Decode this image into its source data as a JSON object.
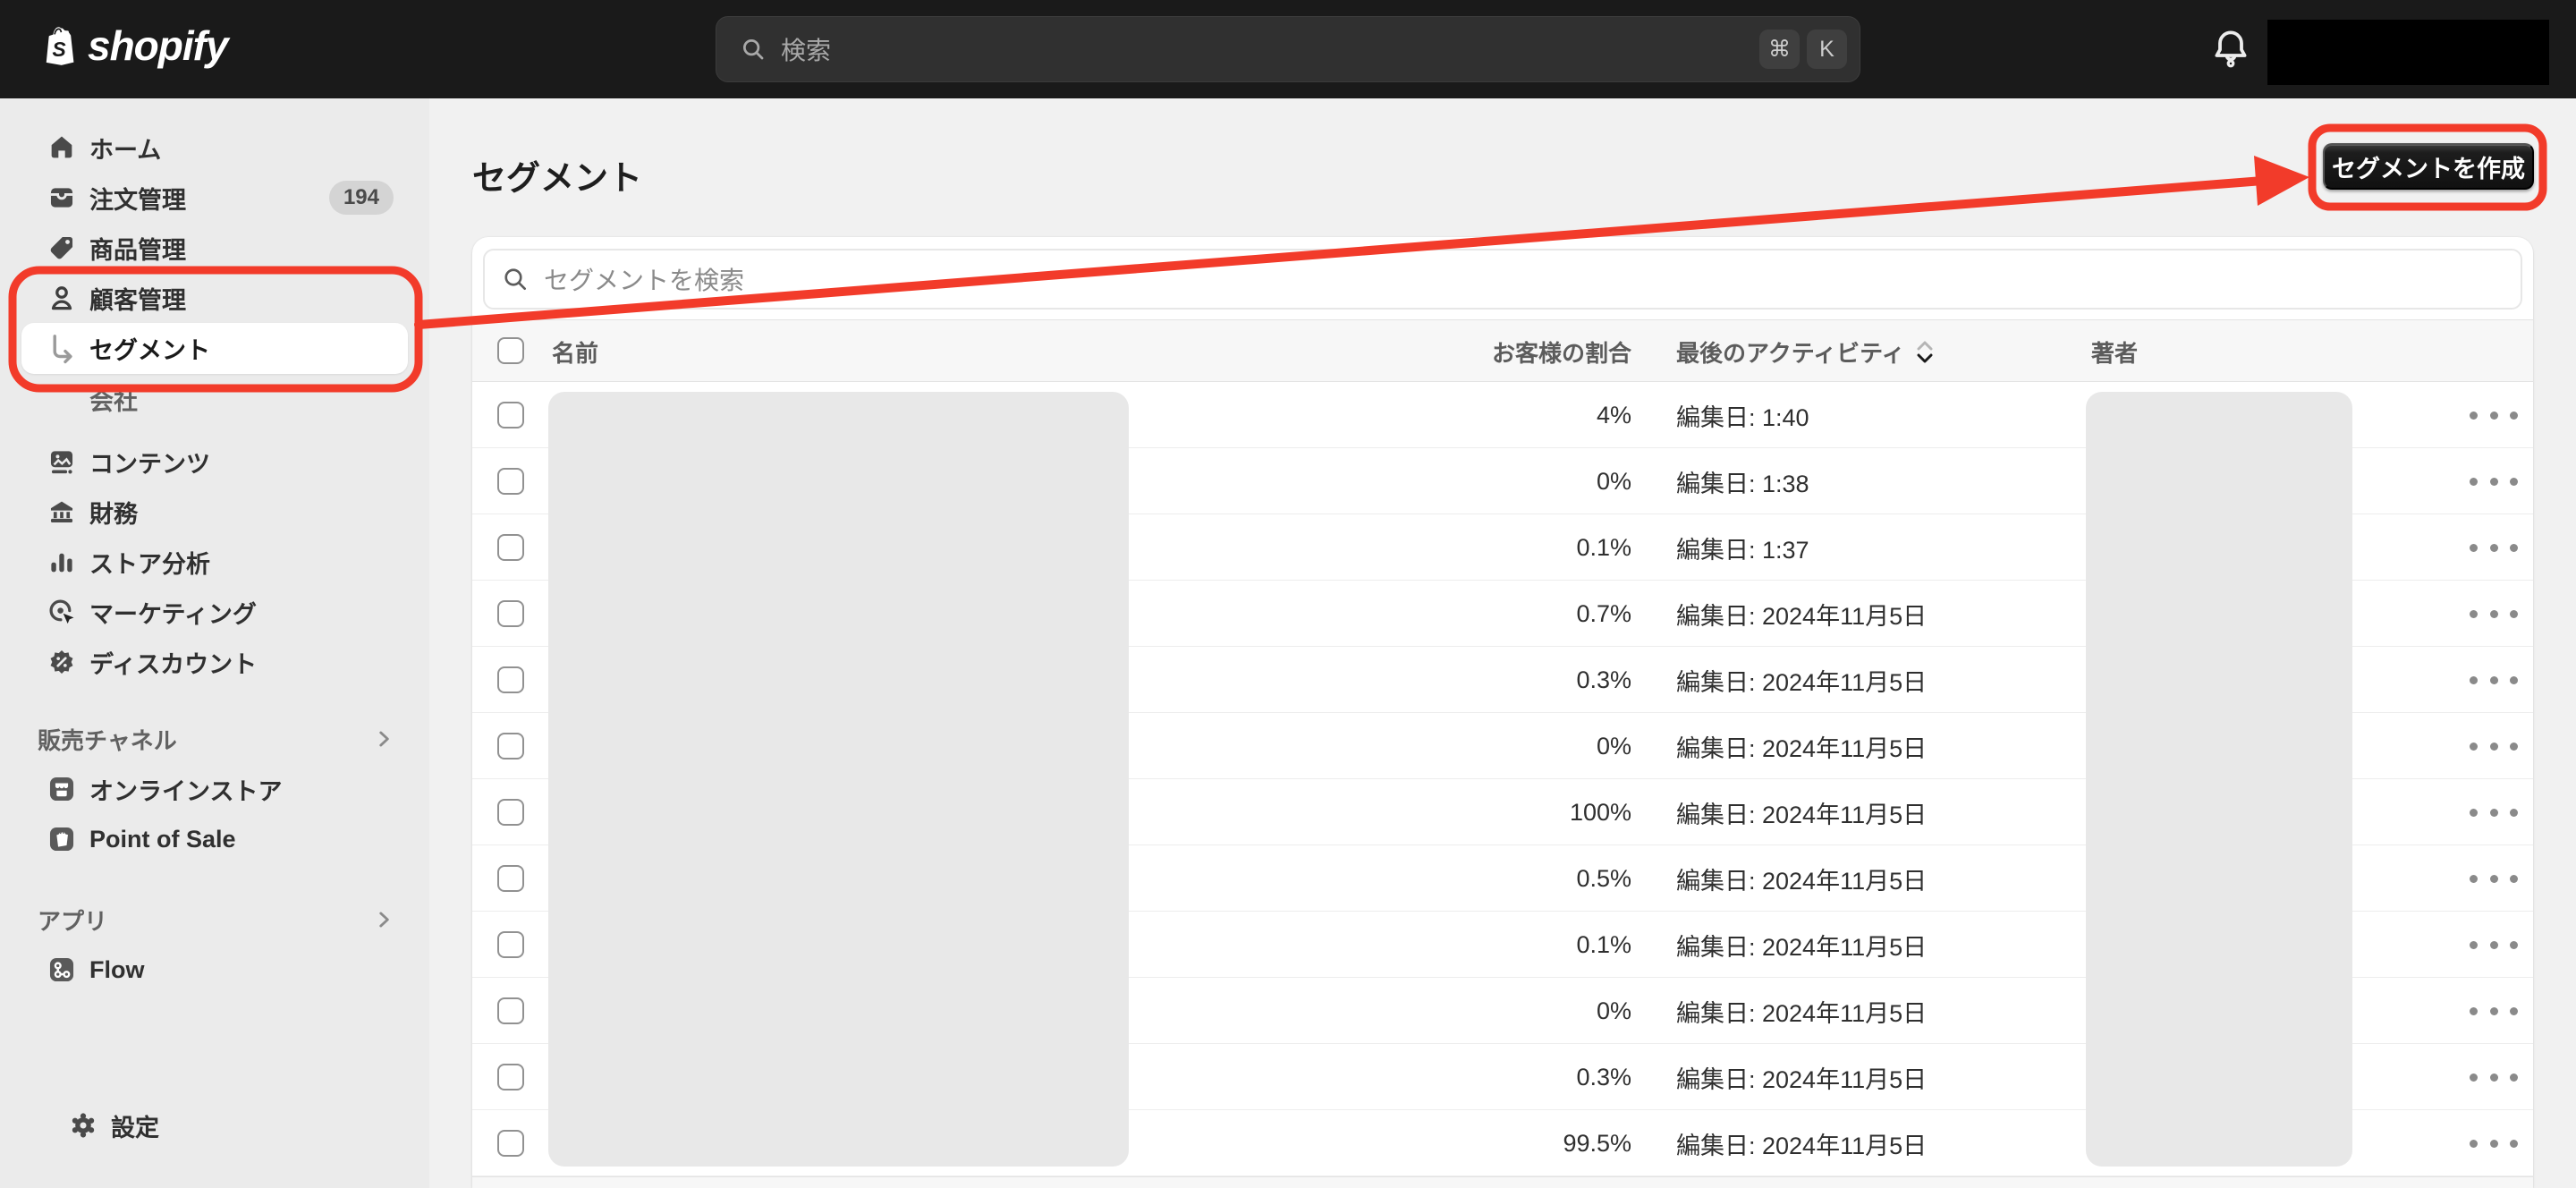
{
  "colors": {
    "annotation_red": "#f23b2a",
    "topbar_bg": "#1a1a1a",
    "sidebar_bg": "#ebebeb",
    "content_bg": "#f1f1f1",
    "button_dark": "#111111",
    "redaction_gray": "#e8e8e8",
    "redaction_black": "#000000"
  },
  "topbar": {
    "brand": "shopify",
    "search_placeholder": "検索",
    "shortcut_keys": [
      "⌘",
      "K"
    ]
  },
  "sidebar": {
    "main_items": [
      {
        "id": "home",
        "label": "ホーム",
        "icon": "home-icon"
      },
      {
        "id": "orders",
        "label": "注文管理",
        "icon": "orders-icon",
        "badge": "194"
      },
      {
        "id": "products",
        "label": "商品管理",
        "icon": "products-icon"
      },
      {
        "id": "customers",
        "label": "顧客管理",
        "icon": "customers-icon"
      },
      {
        "id": "segments",
        "label": "セグメント",
        "icon": "elbow-arrow-icon",
        "sub": true,
        "selected": true
      },
      {
        "id": "companies",
        "label": "会社",
        "sub": true
      },
      {
        "id": "content",
        "label": "コンテンツ",
        "icon": "content-icon",
        "gap": true
      },
      {
        "id": "finance",
        "label": "財務",
        "icon": "finance-icon"
      },
      {
        "id": "analytics",
        "label": "ストア分析",
        "icon": "analytics-icon"
      },
      {
        "id": "marketing",
        "label": "マーケティング",
        "icon": "marketing-icon"
      },
      {
        "id": "discounts",
        "label": "ディスカウント",
        "icon": "discounts-icon"
      }
    ],
    "sales_channels": {
      "header": "販売チャネル",
      "items": [
        {
          "id": "online-store",
          "label": "オンラインストア",
          "icon": "online-store-icon"
        },
        {
          "id": "point-of-sale",
          "label": "Point of Sale",
          "icon": "pos-icon"
        }
      ]
    },
    "apps": {
      "header": "アプリ",
      "items": [
        {
          "id": "flow",
          "label": "Flow",
          "icon": "flow-icon"
        }
      ]
    },
    "settings": {
      "label": "設定",
      "icon": "gear-icon"
    }
  },
  "page": {
    "title": "セグメント",
    "create_button_label": "セグメントを作成",
    "search_placeholder": "セグメントを検索"
  },
  "table": {
    "headers": {
      "name": "名前",
      "percent": "お客様の割合",
      "activity": "最後のアクティビティ",
      "author": "著者"
    },
    "sort_column": "最後のアクティビティ",
    "sort_direction": "descending",
    "rows": [
      {
        "percent": "4%",
        "activity": "編集日: 1:40"
      },
      {
        "percent": "0%",
        "activity": "編集日: 1:38"
      },
      {
        "percent": "0.1%",
        "activity": "編集日: 1:37"
      },
      {
        "percent": "0.7%",
        "activity": "編集日: 2024年11月5日"
      },
      {
        "percent": "0.3%",
        "activity": "編集日: 2024年11月5日"
      },
      {
        "percent": "0%",
        "activity": "編集日: 2024年11月5日"
      },
      {
        "percent": "100%",
        "activity": "編集日: 2024年11月5日"
      },
      {
        "percent": "0.5%",
        "activity": "編集日: 2024年11月5日"
      },
      {
        "percent": "0.1%",
        "activity": "編集日: 2024年11月5日"
      },
      {
        "percent": "0%",
        "activity": "編集日: 2024年11月5日"
      },
      {
        "percent": "0.3%",
        "activity": "編集日: 2024年11月5日"
      },
      {
        "percent": "99.5%",
        "activity": "編集日: 2024年11月5日"
      }
    ]
  }
}
